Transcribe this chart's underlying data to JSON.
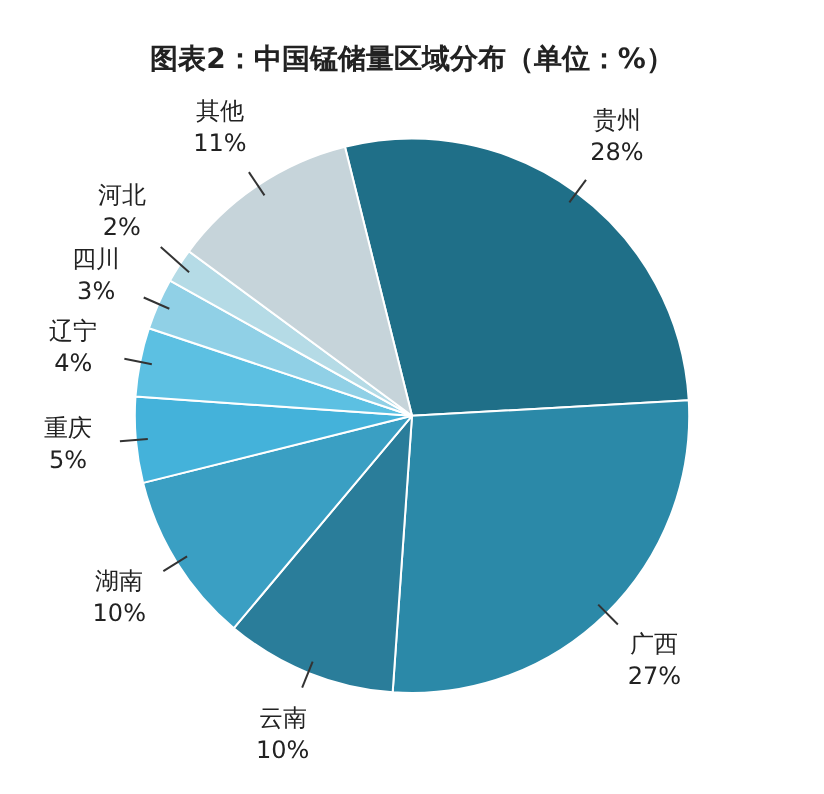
{
  "chart_data": {
    "type": "pie",
    "title": "图表2：中国锰储量区域分布（单位：%）",
    "categories": [
      "贵州",
      "广西",
      "云南",
      "湖南",
      "重庆",
      "辽宁",
      "四川",
      "河北",
      "其他"
    ],
    "values": [
      28,
      27,
      10,
      10,
      5,
      4,
      3,
      2,
      11
    ],
    "value_labels": [
      "28%",
      "27%",
      "10%",
      "10%",
      "5%",
      "4%",
      "3%",
      "2%",
      "11%"
    ],
    "colors": [
      "#1f6f88",
      "#2b89a8",
      "#2a7d9a",
      "#3a9fc3",
      "#44b2da",
      "#5cc0e2",
      "#90d0e6",
      "#b5dbe6",
      "#c6d4da"
    ],
    "legend": false
  }
}
